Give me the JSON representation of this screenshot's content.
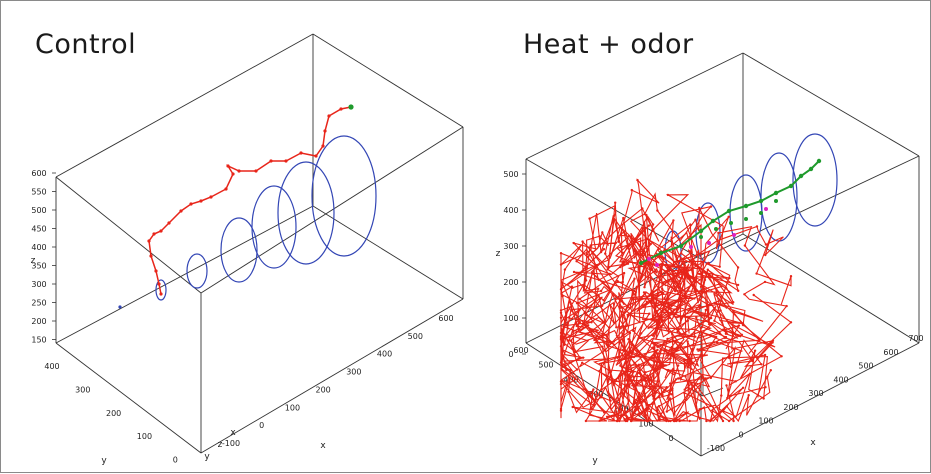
{
  "figure": {
    "panels": [
      {
        "title": "Control"
      },
      {
        "title": "Heat + odor"
      }
    ]
  },
  "colors": {
    "box": "#000000",
    "odor_rings": "#3346b5",
    "path_red": "#e8251a",
    "path_green": "#1f9a2c",
    "magenta": "#e020c0"
  },
  "chart_data": [
    {
      "type": "scatter",
      "title": "Control",
      "projection": "3d",
      "z_ticks": [
        "600",
        "550",
        "500",
        "450",
        "400",
        "350",
        "300",
        "250",
        "200",
        "150"
      ],
      "y_ticks": [
        "400",
        "300",
        "200",
        "100",
        "0"
      ],
      "x_ticks": [
        "-100",
        "0",
        "100",
        "200",
        "300",
        "400",
        "500",
        "600"
      ],
      "xlabel": "x",
      "ylabel": "y",
      "zlabel": "z",
      "axis_corner_labels": [
        "y",
        "z",
        "x"
      ],
      "series": [
        {
          "color": "red",
          "x": [
            -20,
            -10,
            0,
            5,
            10,
            20,
            40,
            80,
            120,
            160,
            200,
            240,
            280,
            320,
            360,
            400,
            430,
            460,
            490,
            520
          ],
          "y": [
            180,
            190,
            200,
            205,
            210,
            215,
            220,
            225,
            230,
            235,
            240,
            245,
            250,
            255,
            260,
            265,
            270,
            275,
            280,
            285
          ],
          "z": [
            280,
            320,
            360,
            400,
            410,
            430,
            450,
            470,
            480,
            490,
            495,
            500,
            505,
            515,
            530,
            540,
            550,
            560,
            570,
            580
          ]
        }
      ],
      "odor_plume_rings": 6
    },
    {
      "type": "scatter",
      "title": "Heat + odor",
      "projection": "3d",
      "z_ticks": [
        "500",
        "400",
        "300",
        "200",
        "100",
        "0"
      ],
      "y_ticks": [
        "600",
        "500",
        "400",
        "300",
        "200",
        "100",
        "0"
      ],
      "x_ticks": [
        "-100",
        "0",
        "100",
        "200",
        "300",
        "400",
        "500",
        "600",
        "700"
      ],
      "xlabel": "x",
      "ylabel": "y",
      "zlabel": "z",
      "series": [
        {
          "color": "red",
          "note_count": "dense trajectories"
        },
        {
          "color": "green",
          "x": [
            100,
            150,
            200,
            250,
            300,
            350,
            400,
            450,
            500,
            550,
            600
          ],
          "y": [
            300,
            310,
            320,
            330,
            340,
            350,
            360,
            370,
            380,
            390,
            400
          ],
          "z": [
            180,
            200,
            230,
            260,
            280,
            300,
            330,
            360,
            390,
            420,
            460
          ]
        }
      ],
      "odor_plume_rings": 5
    }
  ]
}
